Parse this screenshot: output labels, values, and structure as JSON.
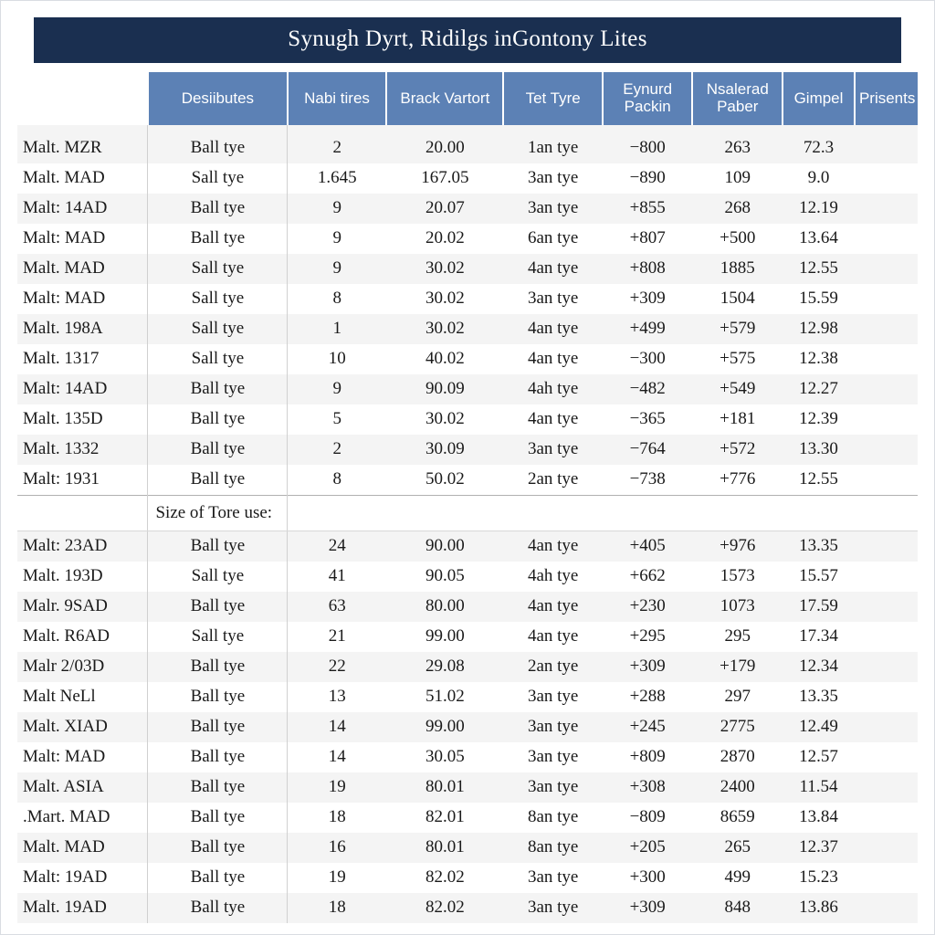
{
  "title": "Synugh Dyrt, Ridilgs inGontony Lites",
  "colors": {
    "title_bg": "#1a2f50",
    "title_fg": "#ffffff",
    "header_bg": "#5c81b5",
    "header_fg": "#ffffff",
    "stripe_bg": "#f4f4f4",
    "border": "#d0d0d0",
    "page_border": "#d9dde2",
    "text": "#1a1a1a"
  },
  "typography": {
    "title_fontsize": 25,
    "header_fontsize": 17,
    "cell_fontsize": 19,
    "font_family_body": "Georgia, serif",
    "font_family_header": "Segoe UI, Arial, sans-serif"
  },
  "columns": [
    "",
    "Desiibutes",
    "Nabi tires",
    "Brack Vartort",
    "Tet Tyre",
    "Eynurd Packin",
    "Nsalerad Paber",
    "Gimpel",
    "Prisents"
  ],
  "column_widths_pct": [
    14.5,
    15.5,
    11,
    13,
    11,
    10,
    10,
    8,
    7
  ],
  "section_label": "Size of Tore use:",
  "rows_top": [
    [
      "Malt. MZR",
      "Ball tye",
      "2",
      "20.00",
      "1an tye",
      "−800",
      "263",
      "72.3",
      ""
    ],
    [
      "Malt. MAD",
      "Sall tye",
      "1.645",
      "167.05",
      "3an tye",
      "−890",
      "109",
      "9.0",
      ""
    ],
    [
      "Malt: 14AD",
      "Ball tye",
      "9",
      "20.07",
      "3an tye",
      "+855",
      "268",
      "12.19",
      ""
    ],
    [
      "Malt: MAD",
      "Ball tye",
      "9",
      "20.02",
      "6an tye",
      "+807",
      "+500",
      "13.64",
      ""
    ],
    [
      "Malt. MAD",
      "Sall tye",
      "9",
      "30.02",
      "4an tye",
      "+808",
      "1885",
      "12.55",
      ""
    ],
    [
      "Malt: MAD",
      "Sall tye",
      "8",
      "30.02",
      "3an tye",
      "+309",
      "1504",
      "15.59",
      ""
    ],
    [
      "Malt. 198A",
      "Sall tye",
      "1",
      "30.02",
      "4an tye",
      "+499",
      "+579",
      "12.98",
      ""
    ],
    [
      "Malt. 1317",
      "Sall tye",
      "10",
      "40.02",
      "4an tye",
      "−300",
      "+575",
      "12.38",
      ""
    ],
    [
      "Malt: 14AD",
      "Ball tye",
      "9",
      "90.09",
      "4ah tye",
      "−482",
      "+549",
      "12.27",
      ""
    ],
    [
      "Malt. 135D",
      "Ball tye",
      "5",
      "30.02",
      "4an tye",
      "−365",
      "+181",
      "12.39",
      ""
    ],
    [
      "Malt. 1332",
      "Ball tye",
      "2",
      "30.09",
      "3an tye",
      "−764",
      "+572",
      "13.30",
      ""
    ],
    [
      "Malt: 1931",
      "Ball tye",
      "8",
      "50.02",
      "2an tye",
      "−738",
      "+776",
      "12.55",
      ""
    ]
  ],
  "rows_bottom": [
    [
      "Malt: 23AD",
      "Ball tye",
      "24",
      "90.00",
      "4an tye",
      "+405",
      "+976",
      "13.35",
      ""
    ],
    [
      "Malt. 193D",
      "Sall tye",
      "41",
      "90.05",
      "4ah tye",
      "+662",
      "1573",
      "15.57",
      ""
    ],
    [
      "Malr. 9SAD",
      "Ball tye",
      "63",
      "80.00",
      "4an tye",
      "+230",
      "1073",
      "17.59",
      ""
    ],
    [
      "Malt. R6AD",
      "Sall tye",
      "21",
      "99.00",
      "4an tye",
      "+295",
      "295",
      "17.34",
      ""
    ],
    [
      "Malr 2/03D",
      "Ball tye",
      "22",
      "29.08",
      "2an tye",
      "+309",
      "+179",
      "12.34",
      ""
    ],
    [
      "Malt NeLl",
      "Ball tye",
      "13",
      "51.02",
      "3an tye",
      "+288",
      "297",
      "13.35",
      ""
    ],
    [
      "Malt. XIAD",
      "Ball tye",
      "14",
      "99.00",
      "3an tye",
      "+245",
      "2775",
      "12.49",
      ""
    ],
    [
      "Malt: MAD",
      "Ball tye",
      "14",
      "30.05",
      "3an tye",
      "+809",
      "2870",
      "12.57",
      ""
    ],
    [
      "Malt. ASIA",
      "Ball tye",
      "19",
      "80.01",
      "3an tye",
      "+308",
      "2400",
      "11.54",
      ""
    ],
    [
      ".Mart. MAD",
      "Ball tye",
      "18",
      "82.01",
      "8an tye",
      "−809",
      "8659",
      "13.84",
      ""
    ],
    [
      "Malt. MAD",
      "Ball tye",
      "16",
      "80.01",
      "8an tye",
      "+205",
      "265",
      "12.37",
      ""
    ],
    [
      "Malt: 19AD",
      "Ball tye",
      "19",
      "82.02",
      "3an tye",
      "+300",
      "499",
      "15.23",
      ""
    ],
    [
      "Malt. 19AD",
      "Ball tye",
      "18",
      "82.02",
      "3an tye",
      "+309",
      "848",
      "13.86",
      ""
    ]
  ]
}
